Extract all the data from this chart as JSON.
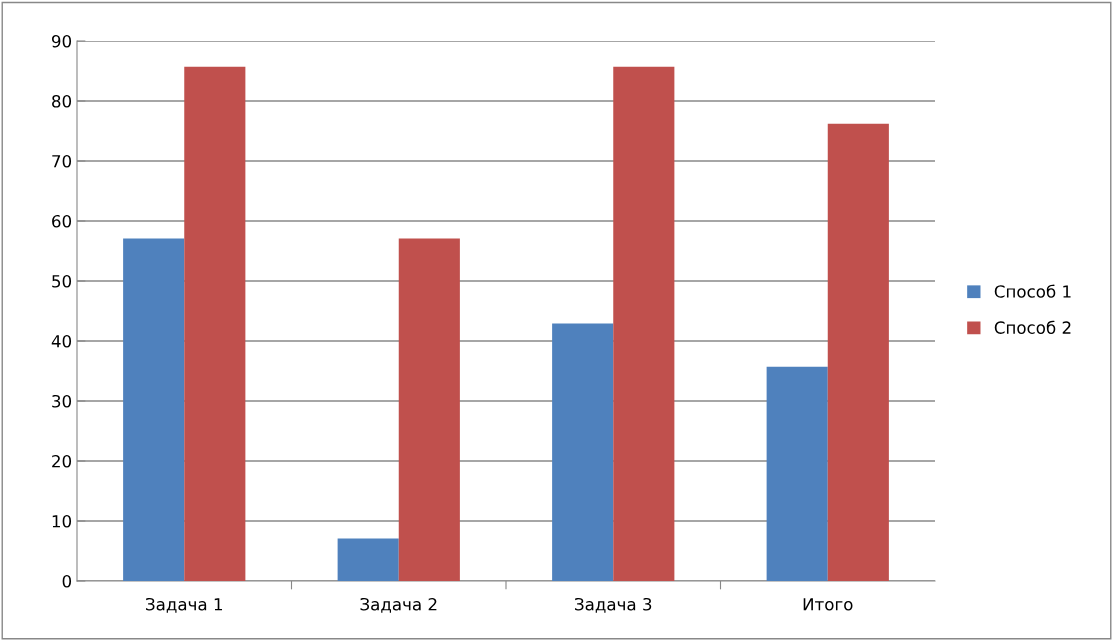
{
  "chart_data": {
    "type": "bar",
    "categories": [
      "Задача 1",
      "Задача 2",
      "Задача 3",
      "Итого"
    ],
    "series": [
      {
        "name": "Способ 1",
        "color": "#4f81bd",
        "values": [
          57.1,
          7.1,
          42.9,
          35.7
        ]
      },
      {
        "name": "Способ 2",
        "color": "#c0504d",
        "values": [
          85.7,
          57.1,
          85.7,
          76.2
        ]
      }
    ],
    "ylim": [
      0,
      90
    ],
    "yticks": [
      0,
      10,
      20,
      30,
      40,
      50,
      60,
      70,
      80,
      90
    ],
    "grid": "y",
    "legend": "right"
  }
}
